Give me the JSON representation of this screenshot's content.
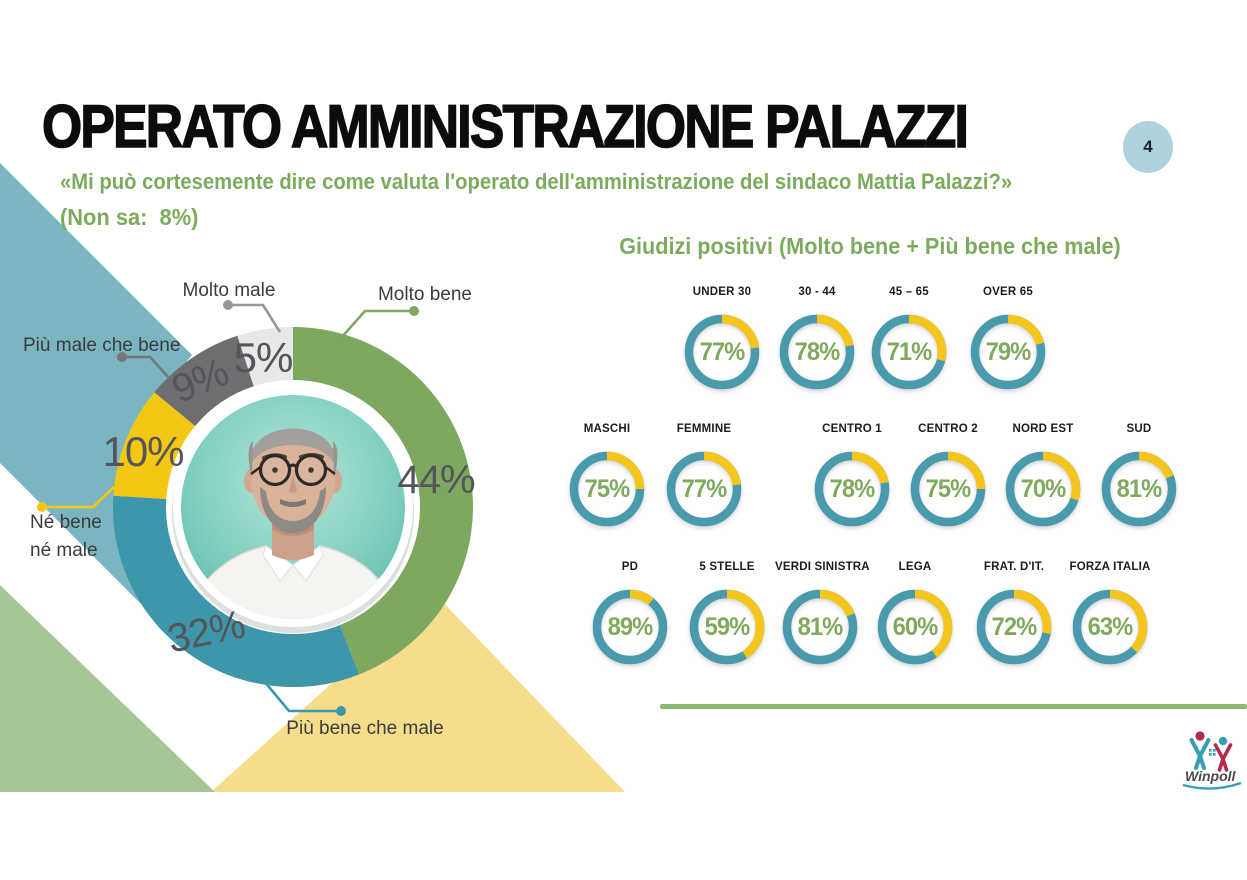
{
  "slide": {
    "title": "OPERATO AMMINISTRAZIONE PALAZZI",
    "subtitle": "«Mi può cortesemente dire come valuta l'operato dell'amministrazione del sindaco Mattia Palazzi?»",
    "note": "(Non sa:  8%)",
    "page_number": "4"
  },
  "chart_data": [
    {
      "type": "pie",
      "name": "valutazione-operato-donut",
      "center_photo": "ritratto sindaco Mattia Palazzi",
      "segments": [
        {
          "label": "Molto bene",
          "value": 44,
          "color": "#7ea75f"
        },
        {
          "label": "Più bene che male",
          "value": 32,
          "color": "#3e96ab"
        },
        {
          "label": "Né bene né male",
          "value": 10,
          "color": "#f3c713"
        },
        {
          "label": "Più male che bene",
          "value": 9,
          "color": "#6d6e70"
        },
        {
          "label": "Molto male",
          "value": 5,
          "color": "#e8e8e9"
        }
      ]
    },
    {
      "type": "donut-gauges",
      "title": "Giudizi positivi (Molto bene + Più bene che male)",
      "unit": "%",
      "ring_color": "#4a9aad",
      "remainder_color": "#f5c51c",
      "value_color": "#7fa95c",
      "rows": [
        [
          {
            "label": "UNDER 30",
            "value": 77
          },
          {
            "label": "30 - 44",
            "value": 78
          },
          {
            "label": "45 – 65",
            "value": 71
          },
          {
            "label": "OVER 65",
            "value": 79
          }
        ],
        [
          {
            "label": "MASCHI",
            "value": 75
          },
          {
            "label": "FEMMINE",
            "value": 77
          },
          {
            "label": "CENTRO 1",
            "value": 78
          },
          {
            "label": "CENTRO 2",
            "value": 75
          },
          {
            "label": "NORD EST",
            "value": 70
          },
          {
            "label": "SUD",
            "value": 81
          }
        ],
        [
          {
            "label": "PD",
            "value": 89
          },
          {
            "label": "5 STELLE",
            "value": 59
          },
          {
            "label": "VERDI SINISTRA",
            "value": 81
          },
          {
            "label": "LEGA",
            "value": 60
          },
          {
            "label": "FRAT. D'IT.",
            "value": 72
          },
          {
            "label": "FORZA ITALIA",
            "value": 63
          }
        ]
      ]
    }
  ],
  "footer": {
    "logo_text": "Winpoll"
  },
  "colors": {
    "accent_green": "#7cab5e",
    "donut_green": "#7ea75f",
    "donut_teal": "#3e96ab",
    "donut_yellow": "#f3c713",
    "donut_gray": "#6d6e70",
    "donut_light": "#e8e8e9",
    "band_teal": "#7ab5c1",
    "triangle_green": "#a6c795",
    "triangle_yellow": "#f6dd8b",
    "badge_blue": "#aed2dc",
    "divider_green": "#8cb86f",
    "value_text": "#54555a"
  }
}
